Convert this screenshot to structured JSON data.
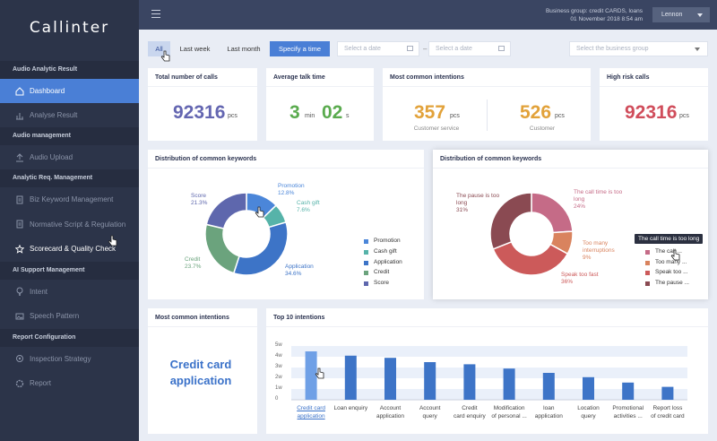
{
  "app": {
    "title": "Callinter"
  },
  "sidebar": {
    "sections": [
      {
        "label": "Audio Analytic Result"
      },
      {
        "label": "Audio management"
      },
      {
        "label": "Analytic Req. Management"
      },
      {
        "label": "AI Support Management"
      },
      {
        "label": "Report Configuration"
      }
    ],
    "items": [
      {
        "label": "Dashboard",
        "icon": "home-icon",
        "active": true
      },
      {
        "label": "Analyse Result",
        "icon": "chart-icon"
      },
      {
        "label": "Audio Upload",
        "icon": "upload-icon"
      },
      {
        "label": "Biz Keyword Management",
        "icon": "document-icon"
      },
      {
        "label": "Normative Script & Regulation",
        "icon": "document-icon"
      },
      {
        "label": "Scorecard & Quality Check",
        "icon": "star-icon"
      },
      {
        "label": "Intent",
        "icon": "bulb-icon"
      },
      {
        "label": "Speech Pattern",
        "icon": "image-icon"
      },
      {
        "label": "Inspection Strategy",
        "icon": "gear-icon"
      },
      {
        "label": "Report",
        "icon": "settings-icon"
      }
    ]
  },
  "header": {
    "business_group": "Business group: credit CARDS, loans",
    "datetime": "01 November 2018  8:54 am",
    "user": "Lennon"
  },
  "filters": {
    "buttons": [
      "All",
      "Last week",
      "Last month",
      "Specify a time"
    ],
    "date_from_placeholder": "Select a date",
    "date_to_placeholder": "Select a date",
    "separator": "–",
    "business_group_placeholder": "Select the business group"
  },
  "stats": {
    "total_calls": {
      "title": "Total number of calls",
      "value": "92316",
      "unit": "pcs"
    },
    "avg_talk": {
      "title": "Average talk time",
      "min": "3",
      "min_unit": "min",
      "sec": "02",
      "sec_unit": "s"
    },
    "common_intent": {
      "title": "Most common intentions",
      "a_value": "357",
      "a_unit": "pcs",
      "a_label": "Customer service",
      "b_value": "526",
      "b_unit": "pcs",
      "b_label": "Customer"
    },
    "high_risk": {
      "title": "High risk calls",
      "value": "92316",
      "unit": "pcs"
    }
  },
  "keywords_chart": {
    "title": "Distribution of common keywords",
    "colors": [
      "#4b86d9",
      "#56b3a9",
      "#3d74c7",
      "#6ba37d",
      "#5e67ad"
    ],
    "slices": [
      {
        "name": "Promotion",
        "pct": "12.8%",
        "value": 12.8,
        "color": "#4b86d9"
      },
      {
        "name": "Cash gift",
        "pct": "7.6%",
        "value": 7.6,
        "color": "#56b3a9"
      },
      {
        "name": "Application",
        "pct": "34.6%",
        "value": 34.6,
        "color": "#3d74c7"
      },
      {
        "name": "Credit",
        "pct": "23.7%",
        "value": 23.7,
        "color": "#6ba37d"
      },
      {
        "name": "Score",
        "pct": "21.3%",
        "value": 21.3,
        "color": "#5e67ad"
      }
    ]
  },
  "risk_chart": {
    "title": "Distribution of common keywords",
    "slices": [
      {
        "name": "The call time is too long",
        "pct": "24%",
        "value": 24,
        "color": "#c56b87"
      },
      {
        "name": "Too many interruptions",
        "pct": "9%",
        "value": 9,
        "color": "#d9835e"
      },
      {
        "name": "Speak too fast",
        "pct": "36%",
        "value": 36,
        "color": "#cc5a5a"
      },
      {
        "name": "The pause is too long",
        "pct": "31%",
        "value": 31,
        "color": "#8a4a52"
      }
    ],
    "legend": [
      "The call ...",
      "Too many ...",
      "Speak too ...",
      "The pause ..."
    ],
    "tooltip": "The call time is too long"
  },
  "intent_card": {
    "title": "Most common intentions",
    "value": "Credit card application"
  },
  "chart_data": {
    "type": "bar",
    "title": "Top 10 intentions",
    "ylabel": "",
    "xlabel": "",
    "y_ticks": [
      "5w",
      "4w",
      "3w",
      "2w",
      "1w",
      "0"
    ],
    "ylim": [
      0,
      5
    ],
    "categories": [
      "Credit card application",
      "Loan enquiry",
      "Account application",
      "Account query",
      "Credit card enquiry",
      "Modification of personal ...",
      "loan application",
      "Location query",
      "Promotional activities ...",
      "Report loss of credit card"
    ],
    "values": [
      4.5,
      4.1,
      3.9,
      3.5,
      3.3,
      2.9,
      2.5,
      2.1,
      1.6,
      1.2
    ],
    "highlight_index": 0,
    "colors": {
      "bar": "#3d74c7",
      "highlight": "#6fa0e6",
      "band": "#eaf0fa"
    }
  }
}
